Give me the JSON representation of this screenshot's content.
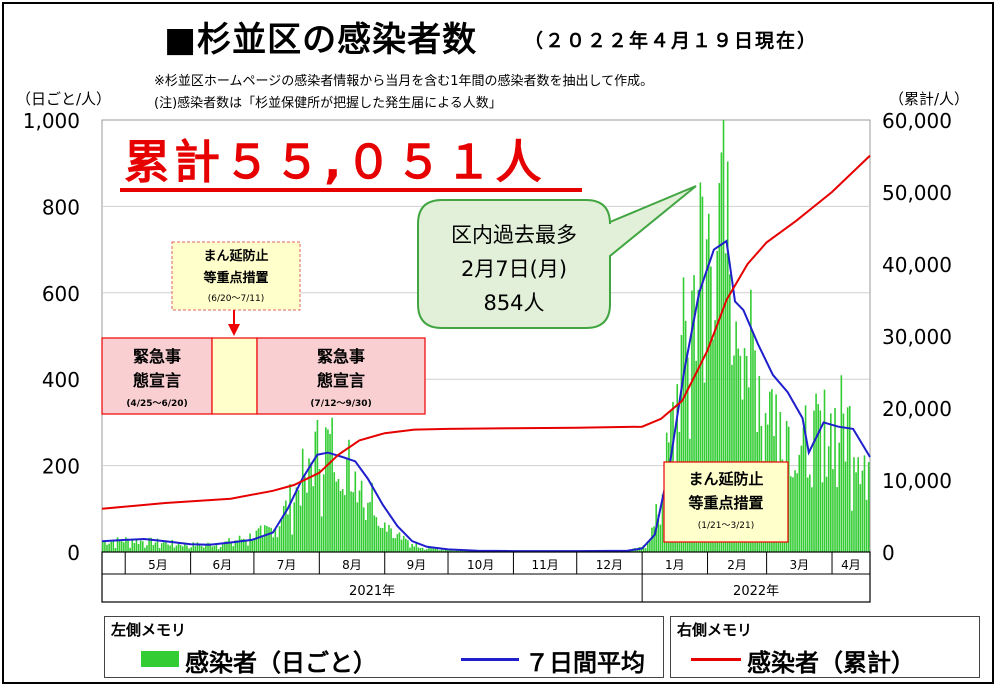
{
  "title": "■杉並区の感染者数",
  "title_date": "（２０２２年４月１９日現在）",
  "notes": [
    "※杉並区ホームページの感染者情報から当月を含む1年間の感染者数を抽出して作成。",
    "(注)感染者数は「杉並保健所が把握した発生届による人数」"
  ],
  "left_axis_unit": "（日ごと/人）",
  "right_axis_unit": "（累計/人）",
  "cumulative_banner": "累計５５,０５１人",
  "peak_callout": {
    "lines": [
      "区内過去最多",
      "2月7日(月)",
      "854人"
    ]
  },
  "events": [
    {
      "label_lines": [
        "緊急事",
        "態宣言"
      ],
      "period": "(4/25～6/20)"
    },
    {
      "label_lines": [
        "まん延防止",
        "等重点措置"
      ],
      "period": "(6/20～7/11)"
    },
    {
      "label_lines": [
        "緊急事",
        "態宣言"
      ],
      "period": "(7/12～9/30)"
    },
    {
      "label_lines": [
        "まん延防止",
        "等重点措置"
      ],
      "period": "(1/21～3/21)"
    }
  ],
  "legend": {
    "left_title": "左側メモリ",
    "right_title": "右側メモリ",
    "daily": "感染者（日ごと）",
    "avg7": "７日間平均",
    "cumulative": "感染者（累計）"
  },
  "colors": {
    "bars": "#33cc33",
    "avg7": "#1f1fcc",
    "cumulative": "#e60000",
    "emergency_fill": "#f9cfd2",
    "manen_fill": "#ffffcc",
    "callout_fill": "#e2f0d9",
    "callout_border": "#41a541"
  },
  "chart_data": {
    "type": "bar",
    "title": "杉並区の感染者数",
    "x_months": [
      "5月",
      "6月",
      "7月",
      "8月",
      "9月",
      "10月",
      "11月",
      "12月",
      "1月",
      "2月",
      "3月",
      "4月"
    ],
    "x_years": [
      "2021年",
      "2022年"
    ],
    "x_range": [
      "2021-04-20",
      "2022-04-19"
    ],
    "left_axis": {
      "ticks": [
        "0",
        "200",
        "400",
        "600",
        "800",
        "1,000"
      ],
      "ylim": [
        0,
        1000
      ]
    },
    "right_axis": {
      "ticks": [
        "0",
        "10,000",
        "20,000",
        "30,000",
        "40,000",
        "50,000",
        "60,000"
      ],
      "ylim": [
        0,
        60000
      ]
    },
    "series": [
      {
        "name": "感染者（日ごと）",
        "type": "bar",
        "axis": "left",
        "approx_daily_points": [
          [
            "2021-04-20",
            25
          ],
          [
            "2021-05-01",
            30
          ],
          [
            "2021-05-15",
            25
          ],
          [
            "2021-06-01",
            18
          ],
          [
            "2021-06-15",
            20
          ],
          [
            "2021-06-30",
            40
          ],
          [
            "2021-07-10",
            60
          ],
          [
            "2021-07-20",
            140
          ],
          [
            "2021-07-28",
            230
          ],
          [
            "2021-08-03",
            270
          ],
          [
            "2021-08-10",
            250
          ],
          [
            "2021-08-17",
            210
          ],
          [
            "2021-08-25",
            150
          ],
          [
            "2021-09-01",
            80
          ],
          [
            "2021-09-10",
            30
          ],
          [
            "2021-09-20",
            12
          ],
          [
            "2021-10-01",
            5
          ],
          [
            "2021-11-01",
            2
          ],
          [
            "2021-12-01",
            2
          ],
          [
            "2021-12-25",
            4
          ],
          [
            "2022-01-01",
            10
          ],
          [
            "2022-01-07",
            60
          ],
          [
            "2022-01-14",
            250
          ],
          [
            "2022-01-21",
            500
          ],
          [
            "2022-01-28",
            720
          ],
          [
            "2022-02-04",
            800
          ],
          [
            "2022-02-07",
            854
          ],
          [
            "2022-02-14",
            680
          ],
          [
            "2022-02-21",
            540
          ],
          [
            "2022-02-28",
            420
          ],
          [
            "2022-03-07",
            360
          ],
          [
            "2022-03-14",
            310
          ],
          [
            "2022-03-21",
            260
          ],
          [
            "2022-03-28",
            300
          ],
          [
            "2022-04-04",
            330
          ],
          [
            "2022-04-11",
            310
          ],
          [
            "2022-04-19",
            220
          ]
        ]
      },
      {
        "name": "７日間平均",
        "type": "line",
        "axis": "left",
        "points": [
          [
            "2021-04-20",
            25
          ],
          [
            "2021-05-01",
            28
          ],
          [
            "2021-05-10",
            30
          ],
          [
            "2021-05-20",
            25
          ],
          [
            "2021-06-01",
            18
          ],
          [
            "2021-06-10",
            17
          ],
          [
            "2021-06-20",
            22
          ],
          [
            "2021-06-30",
            28
          ],
          [
            "2021-07-10",
            45
          ],
          [
            "2021-07-17",
            100
          ],
          [
            "2021-07-24",
            170
          ],
          [
            "2021-07-31",
            225
          ],
          [
            "2021-08-05",
            230
          ],
          [
            "2021-08-12",
            220
          ],
          [
            "2021-08-18",
            210
          ],
          [
            "2021-08-24",
            170
          ],
          [
            "2021-08-31",
            110
          ],
          [
            "2021-09-07",
            60
          ],
          [
            "2021-09-14",
            25
          ],
          [
            "2021-09-21",
            12
          ],
          [
            "2021-10-01",
            6
          ],
          [
            "2021-10-15",
            3
          ],
          [
            "2021-11-01",
            2
          ],
          [
            "2021-12-01",
            2
          ],
          [
            "2021-12-25",
            3
          ],
          [
            "2022-01-01",
            8
          ],
          [
            "2022-01-07",
            40
          ],
          [
            "2022-01-14",
            200
          ],
          [
            "2022-01-21",
            420
          ],
          [
            "2022-01-28",
            600
          ],
          [
            "2022-02-04",
            700
          ],
          [
            "2022-02-10",
            720
          ],
          [
            "2022-02-14",
            580
          ],
          [
            "2022-02-18",
            560
          ],
          [
            "2022-02-25",
            480
          ],
          [
            "2022-03-04",
            410
          ],
          [
            "2022-03-11",
            370
          ],
          [
            "2022-03-18",
            310
          ],
          [
            "2022-03-21",
            230
          ],
          [
            "2022-03-28",
            300
          ],
          [
            "2022-04-04",
            290
          ],
          [
            "2022-04-11",
            285
          ],
          [
            "2022-04-19",
            220
          ]
        ]
      },
      {
        "name": "感染者（累計）",
        "type": "line",
        "axis": "right",
        "points": [
          [
            "2021-04-20",
            6000
          ],
          [
            "2021-05-20",
            6800
          ],
          [
            "2021-06-20",
            7400
          ],
          [
            "2021-07-10",
            8500
          ],
          [
            "2021-07-20",
            9300
          ],
          [
            "2021-08-01",
            11000
          ],
          [
            "2021-08-10",
            13500
          ],
          [
            "2021-08-20",
            15500
          ],
          [
            "2021-09-01",
            16500
          ],
          [
            "2021-09-15",
            17000
          ],
          [
            "2021-10-01",
            17100
          ],
          [
            "2021-11-01",
            17200
          ],
          [
            "2021-12-01",
            17250
          ],
          [
            "2022-01-01",
            17400
          ],
          [
            "2022-01-10",
            18500
          ],
          [
            "2022-01-20",
            21000
          ],
          [
            "2022-02-01",
            28000
          ],
          [
            "2022-02-10",
            35000
          ],
          [
            "2022-02-20",
            40000
          ],
          [
            "2022-03-01",
            43000
          ],
          [
            "2022-03-15",
            46000
          ],
          [
            "2022-04-01",
            50000
          ],
          [
            "2022-04-19",
            55051
          ]
        ]
      }
    ]
  }
}
